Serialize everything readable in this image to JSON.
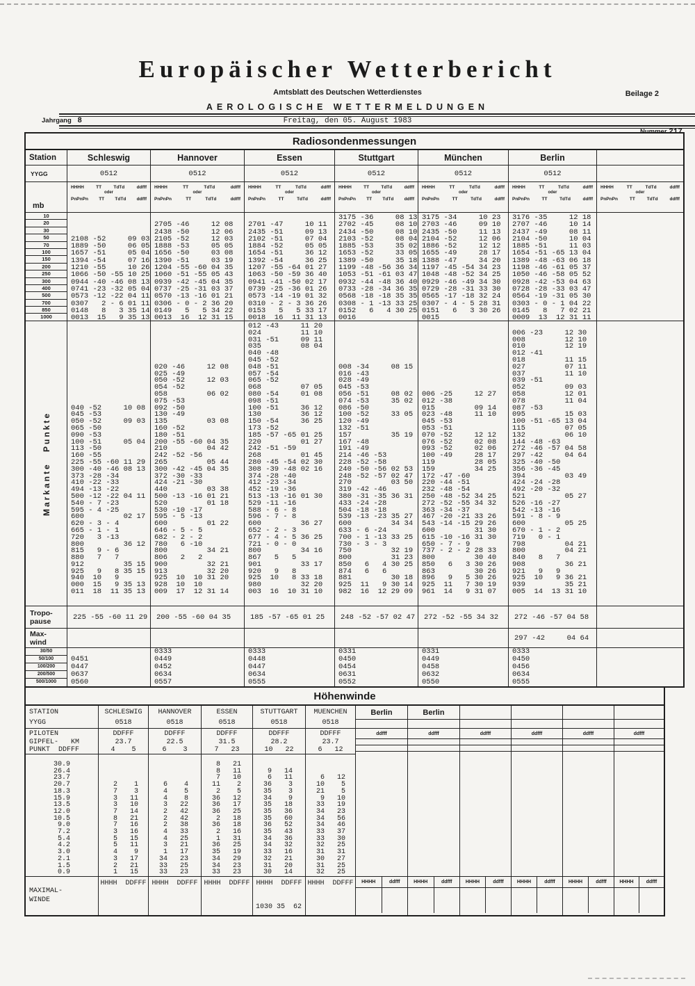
{
  "header": {
    "title": "Europäischer Wetterbericht",
    "subtitle": "Amtsblatt des Deutschen Wetterdienstes",
    "subtitle2": "AEROLOGISCHE WETTERMELDUNGEN",
    "beilage": "Beilage 2",
    "jahrgang_label": "Jahrgang",
    "jahrgang_value": "8",
    "date": "Freitag, den 05. August 1983",
    "nummer_label": "Nummer",
    "nummer_value": "217"
  },
  "radiosonde": {
    "section_title": "Radiosondenmessungen",
    "station_label": "Station",
    "yygg_label": "YYGG",
    "mb_label": "mb",
    "markante_label": "Markante Punkte",
    "tropopause_label": "Tropo-\npause",
    "maxwind_label": "Max-\nwind",
    "col_header": {
      "h1": "HHHH",
      "h2": "TT",
      "h3": "TdTd",
      "h4": "ddfff",
      "oder": "oder",
      "p1": "PnPnPn",
      "p2": "TT",
      "p3": "TdTd",
      "p4": "ddfff"
    },
    "mb_levels": [
      "10",
      "20",
      "30",
      "50",
      "70",
      "100",
      "150",
      "200",
      "250",
      "300",
      "400",
      "500",
      "700",
      "850",
      "1000"
    ],
    "ratio_labels": [
      "30/50",
      "50/100",
      "100/200",
      "200/500",
      "500/1000"
    ],
    "stations": [
      {
        "name": "Schleswig",
        "yygg": "0512",
        "levels": "\n\n\n2108 -52     09 03\n1889 -50     06 05\n1657 -51     05 04\n1394 -54     07 16\n1210 -55     10 26\n1066 -50 -55 10 25\n0944 -40 -46 08 13\n0741 -23 -32 05 04\n0573 -12 -22 04 11\n0307   2 - 6 01 11\n0148   8   3 35 14\n0013  15   9 35 13",
        "markante": "\n\n\n\n\n\n\n\n\n\n\n\n040 -52     10 08\n045 -53\n050 -52     09 03\n065 -50\n090 -53\n100 -51     05 04\n113 -50\n160 -55\n225 -55 -60 11 29\n300 -40 -46 08 13\n373 -28 -34\n410 -22 -33\n494 -13 -22\n500 -12 -22 04 11\n540 - 7 -23\n595 - 4 -25\n600         02 17\n620 - 3 - 4\n665 - 1 - 1\n720   3 -13\n800         36 12\n815   9 - 6\n880   7   7\n912         35 15\n925   9   8 35 15\n940  10   9\n000  15   9 35 13\n011  18  11 35 13",
        "tropopause": "225 -55 -60 11 29",
        "maxwind": "",
        "ratios": "\n0451\n0447\n0637\n0560"
      },
      {
        "name": "Hannover",
        "yygg": "0512",
        "levels": "\n2705 -46     12 08\n2438 -50     12 06\n2105 -52     12 03\n1888 -53     05 05\n1656 -50     03 08\n1390 -51     03 19\n1204 -55 -60 04 35\n1060 -51 -55 05 43\n0939 -42 -45 04 35\n0737 -25 -31 03 37\n0570 -13 -16 01 21\n0306 - 0 - 2 36 20\n0149   5   5 34 22\n0013  16  12 31 15",
        "markante": "\n\n\n\n\n\n020 -46     12 08\n025 -49\n050 -52     12 03\n054 -52\n058         06 02\n075 -53\n092 -50\n130 -49\n135         03 08\n160 -52\n180 -51\n200 -55 -60 04 35\n210         04 42\n242 -52 -56\n265         05 44\n300 -42 -45 04 35\n372 -30 -33\n424 -21 -30\n440         03 38\n500 -13 -16 01 21\n520         01 18\n530 -10 -17\n595 - 5 -13\n600         01 22\n646 - 5 - 5\n682 - 2 - 2\n780   6 -10\n800         34 21\n806   2   2\n900         32 21\n913         32 20\n925  10  10 31 20\n928  10  10\n009  17  12 31 14",
        "tropopause": "200 -55 -60 04 35",
        "maxwind": "",
        "ratios": "0333\n0449\n0452\n0634\n0557"
      },
      {
        "name": "Essen",
        "yygg": "0512",
        "levels": "\n2701 -47     10 11\n2435 -51     09 13\n2102 -51     07 04\n1884 -52     05 05\n1654 -51     36 12\n1392 -54     36 25\n1207 -55 -64 01 27\n1063 -50 -59 36 40\n0941 -41 -50 02 17\n0739 -25 -36 01 26\n0573 -14 -19 01 32\n0310 - 2 - 3 36 26\n0153   5   5 33 17\n0018  16  11 31 13",
        "markante": "012 -43     11 20\n024         11 10\n031 -51     09 11\n035         08 04\n040 -48\n045 -52\n048 -51\n057 -54\n065 -52\n068         07 05\n080 -54     01 08\n098 -51\n100 -51     36 12\n130         36 12\n150 -54     36 25\n173 -52\n185 -57 -65 01 25\n220         01 27\n242 -51 -59\n268         01 45\n280 -45 -54 02 30\n308 -39 -48 02 16\n374 -28 -40\n412 -23 -34\n452 -19 -36\n513 -13 -16 01 30\n529 -11 -16\n588 - 6 - 8\n596 - 7 - 8\n600         36 27\n652 - 2 - 3\n677 - 4 - 5 36 25\n721 - 0 - 0\n800         34 16\n867   5   5\n901         33 17\n920   9   8\n925  10   8 33 18\n980         32 20\n003  16  10 31 10",
        "tropopause": "185 -57 -65 01 25",
        "maxwind": "",
        "ratios": "0333\n0448\n0447\n0634\n0555"
      },
      {
        "name": "Stuttgart",
        "yygg": "0512",
        "levels": "3175 -36     08 13\n2702 -45     08 10\n2434 -50     08 10\n2103 -52     08 04\n1885 -53     35 02\n1653 -52     33 05\n1389 -50     35 18\n1199 -48 -56 36 34\n1053 -51 -61 03 47\n0932 -44 -48 36 40\n0733 -28 -34 36 35\n0568 -18 -18 35 35\n0308 - 1 -13 33 25\n0152   6   4 30 25\n0016",
        "markante": "\n\n\n\n\n\n008 -34     08 15\n016 -43\n028 -49\n045 -53\n056 -51     08 02\n074 -53     35 02\n086 -50\n100 -52     33 05\n120 -49\n132 -51\n157         35 19\n167 -48\n191 -49\n214 -46 -53\n228 -52 -58\n240 -50 -56 02 53\n248 -52 -57 02 47\n270         03 50\n319 -42 -46\n380 -31 -35 36 31\n433 -24 -28\n504 -18 -18\n539 -13 -23 35 27\n600         34 34\n633 - 6 -24\n700 - 1 -13 33 25\n730 - 3 - 3\n750         32 19\n800         31 23\n850   6   4 30 25\n874   6   6\n881         30 18\n925  11   9 30 14\n982  16  12 29 09",
        "tropopause": "248 -52 -57 02 47",
        "maxwind": "",
        "ratios": "0331\n0450\n0454\n0631\n0552"
      },
      {
        "name": "München",
        "yygg": "0512",
        "levels": "3175 -34     10 23\n2703 -46     09 10\n2435 -50     11 13\n2104 -52     12 06\n1886 -52     12 12\n1655 -49     28 17\n1388 -47     34 20\n1197 -45 -54 34 23\n1048 -48 -52 34 25\n0929 -46 -49 34 30\n0729 -28 -31 33 30\n0565 -17 -18 32 24\n0307 - 4 - 5 28 31\n0151   6   3 30 26\n0015",
        "markante": "\n\n\n\n\n\n\n\n\n\n006 -25     12 27\n012 -38\n015         09 14\n023 -48     11 10\n045 -53\n053 -51\n070 -52     12 12\n076 -52     02 08\n093 -52     02 06\n100 -49     28 17\n119         28 05\n159         34 25\n172 -47 -60\n220 -44 -51\n232 -48 -54\n250 -48 -52 34 25\n272 -52 -55 34 32\n363 -34 -37\n467 -20 -21 33 26\n543 -14 -15 29 26\n600         31 30\n615 -10 -16 31 30\n650 - 7 - 9\n737 - 2 - 2 28 33\n800         30 40\n850   6   3 30 26\n863         30 26\n896   9   5 30 26\n925  11   7 30 19\n961  14   9 31 07",
        "tropopause": "272 -52 -55 34 32",
        "maxwind": "",
        "ratios": "0331\n0449\n0458\n0632\n0550"
      },
      {
        "name": "Berlin",
        "yygg": "0512",
        "levels": "3176 -35     12 18\n2707 -46     10 14\n2437 -49     08 11\n2104 -50     10 04\n1885 -51     11 03\n1654 -51 -65 13 04\n1389 -48 -63 06 18\n1198 -46 -61 05 37\n1050 -46 -58 05 52\n0928 -42 -53 04 63\n0728 -28 -33 03 47\n0564 -19 -31 05 30\n0303 - 0 - 1 04 22\n0145   8   7 02 21\n0009  13  12 31 11",
        "markante": "\n006 -23     12 30\n008         12 10\n010         12 19\n012 -41\n018         11 15\n027         07 11\n037         11 10\n039 -51\n052         09 03\n058         12 01\n078         11 04\n087 -53\n095         15 03\n100 -51 -65 13 04\n115         07 05\n132         06 10\n144 -48 -63\n272 -46 -57 04 58\n297 -42     04 64\n325 -40 -50\n356 -36 -45\n394         03 49\n424 -24 -28\n492 -20 -32\n521         05 27\n526 -16 -27\n542 -13 -16\n591 - 8 - 9\n600         05 25\n670 - 1 - 2\n719   0 - 1\n798         04 21\n800         04 21\n840   8   7\n908         36 21\n921   9   9\n925  10   9 36 21\n939         35 21\n005  14  13 31 10",
        "tropopause": "272 -46 -57 04 58",
        "maxwind": "297 -42     04 64",
        "ratios": "0333\n0450\n0456\n0634\n0555"
      },
      {
        "name": "",
        "yygg": "",
        "levels": "",
        "markante": "",
        "tropopause": "",
        "maxwind": "",
        "ratios": ""
      }
    ]
  },
  "hoehenwinde": {
    "section_title": "Höhenwinde",
    "label_col": {
      "station_yygg": "STATION\nYYGG",
      "piloten_block": "PILOTEN\nGIPFEL-   KM\nPUNKT  DDFFF",
      "altitudes": "30.9\n26.4\n23.7\n20.7\n18.3\n15.9\n13.5\n12.0\n10.5\n 9.0\n 7.2\n 5.4\n 4.2\n 3.0\n 2.1\n 1.5\n 0.9",
      "maximal": "MAXIMAL-\nWINDE"
    },
    "stations": [
      {
        "name_yygg": "SCHLESWIG\n0518",
        "piloten": "DDFFF\n23.7\n4    5",
        "winds": "\n\n\n 2    1\n 7    3\n 3   11\n 3   10\n 7   14\n 8   21\n 7   16\n 3   16\n 5   15\n 5   11\n 4    9\n 3   17\n 2   21\n 1   15",
        "maximal_header": "HHHH  DDFFF",
        "maximal_value": ""
      },
      {
        "name_yygg": "HANNOVER\n0518",
        "piloten": "DDFFF\n22.5\n6    3",
        "winds": "\n\n\n 6    4\n 4    5\n 4    8\n 3   22\n 2   42\n 2   42\n 2   38\n 4   33\n 4   25\n 3   21\n 1   17\n34   23\n33   25\n33   23",
        "maximal_header": "HHHH  DDFFF",
        "maximal_value": ""
      },
      {
        "name_yygg": "ESSEN\n0518",
        "piloten": "DDFFF\n31.5\n7   23",
        "winds": " 8   21\n 8   11\n 7   10\n11    2\n 2    5\n36   12\n36   17\n36   25\n 2   18\n36   18\n 2   16\n 1   31\n36   25\n35   19\n34   29\n34   23\n33   23",
        "maximal_header": "HHHH  DDFFF",
        "maximal_value": ""
      },
      {
        "name_yygg": "STUTTGART\n0518",
        "piloten": "DDFFF\n28.2\n10   22",
        "winds": "\n 9   14\n 6   11\n36    3\n35    3\n34    9\n35   18\n35   36\n35   60\n36   52\n35   43\n34   36\n34   32\n33   16\n32   21\n31   20\n30   14",
        "maximal_header": "HHHH  DDFFF",
        "maximal_value": "1030 35  62"
      },
      {
        "name_yygg": "MUENCHEN\n0518",
        "piloten": "DDFFF\n23.7\n6   12",
        "winds": "\n\n 6   12\n10    5\n21    5\n 9   10\n33   19\n34   23\n34   56\n34   46\n33   37\n33   30\n32   25\n31   31\n30   27\n31   25\n32   25",
        "maximal_header": "HHHH  DDFFF",
        "maximal_value": ""
      }
    ],
    "right_cols": [
      {
        "name": "Berlin",
        "ddfff": "ddfff",
        "max_h": "HHHH",
        "max_d": "ddfff"
      },
      {
        "name": "Berlin",
        "ddfff": "ddfff",
        "max_h": "HHHH",
        "max_d": "ddfff"
      },
      {
        "name": "",
        "ddfff": "ddfff",
        "max_h": "HHHH",
        "max_d": "ddfff"
      },
      {
        "name": "",
        "ddfff": "ddfff",
        "max_h": "HHHH",
        "max_d": "ddfff"
      },
      {
        "name": "",
        "ddfff": "ddfff",
        "max_h": "HHHH",
        "max_d": "ddfff"
      },
      {
        "name": "",
        "ddfff": "ddfff",
        "max_h": "HHHH",
        "max_d": "ddfff"
      }
    ]
  }
}
